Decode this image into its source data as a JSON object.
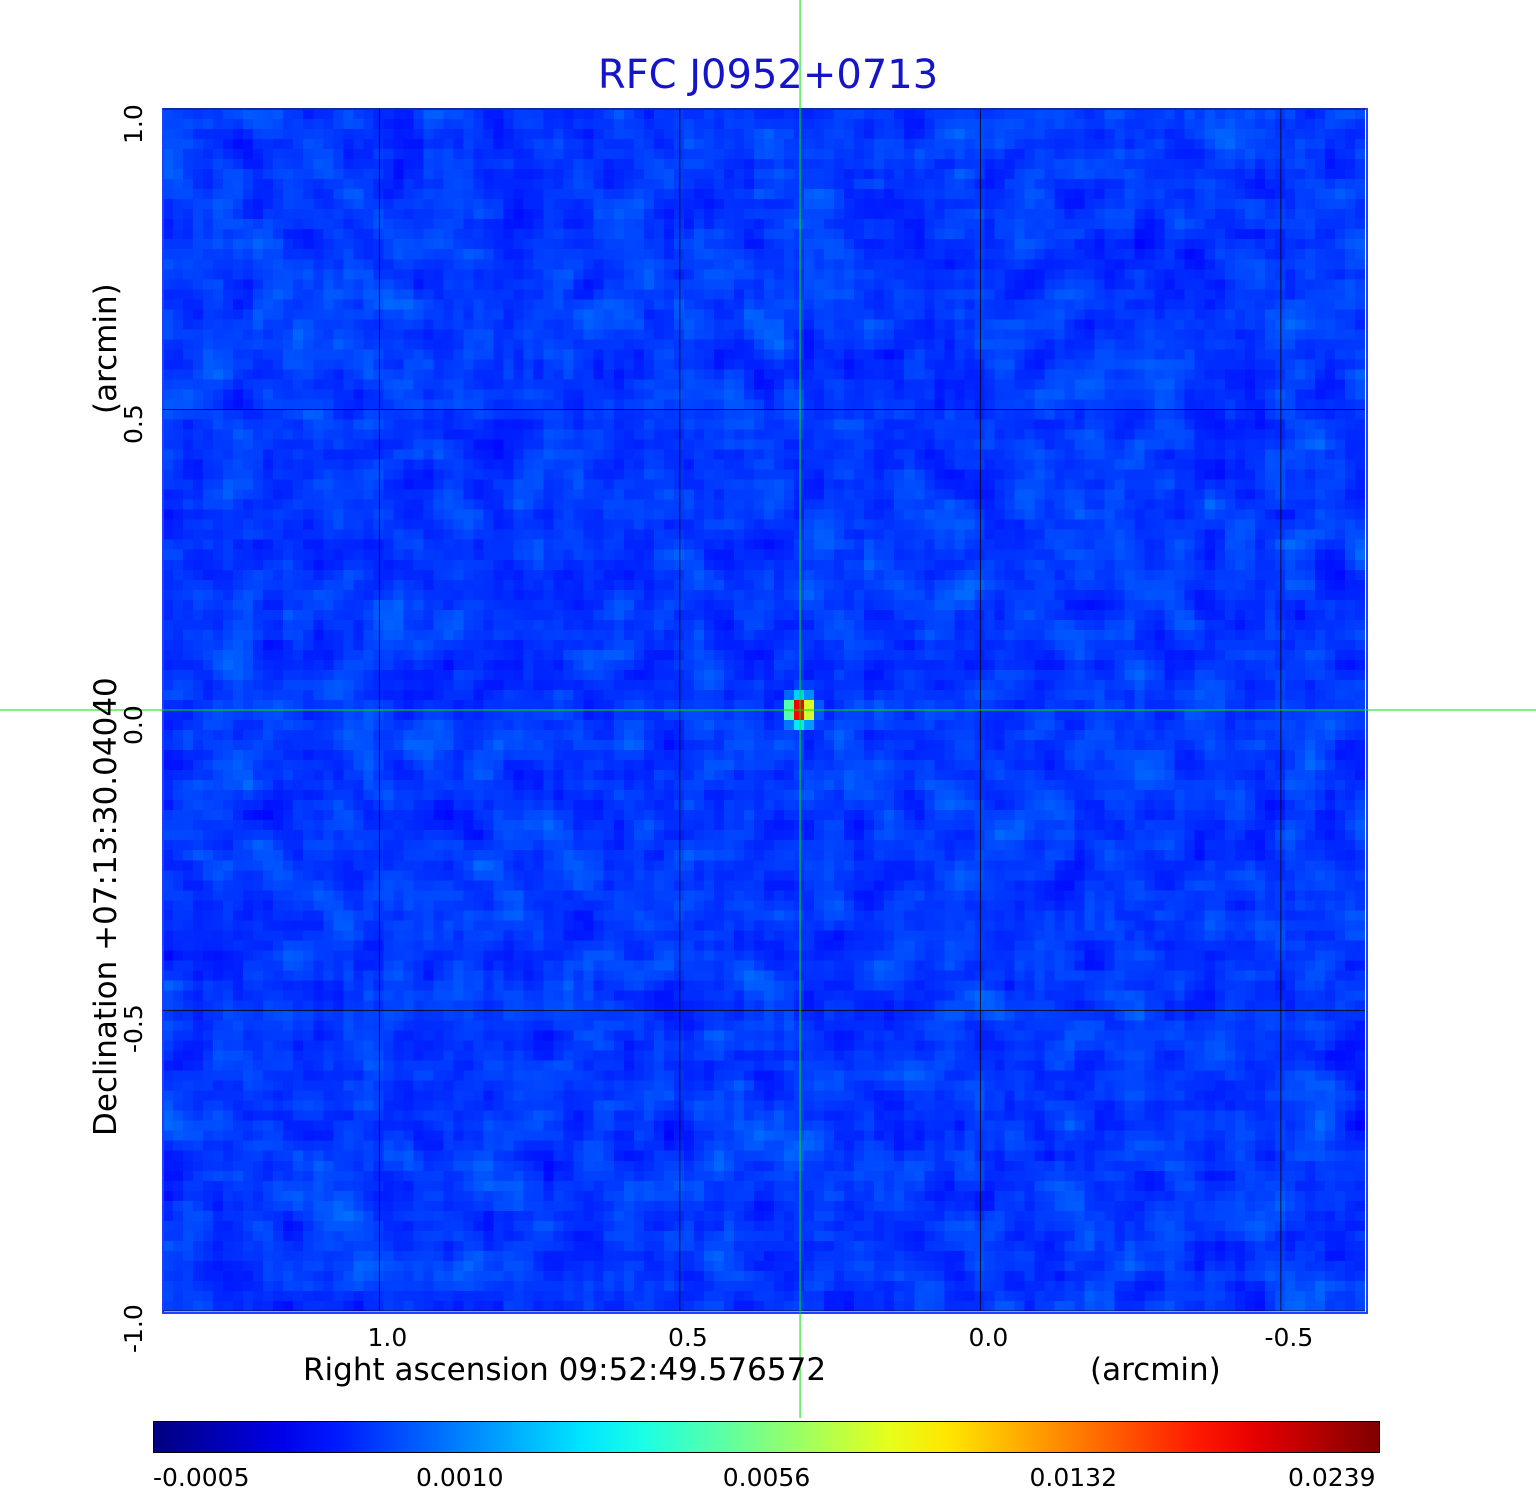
{
  "chart_data": {
    "type": "heatmap",
    "title": "RFC J0952+0713",
    "xlabel": "Right ascension  09:52:49.576572",
    "xunit": "(arcmin)",
    "ylabel": "Declination  +07:13:30.04040",
    "yunit": "(arcmin)",
    "xlim": [
      1.36,
      -0.64
    ],
    "ylim": [
      -1.0,
      1.0
    ],
    "x_ticks": [
      "1.0",
      "0.5",
      "0.0",
      "-0.5"
    ],
    "x_tick_values": [
      1.0,
      0.5,
      0.0,
      -0.5
    ],
    "y_ticks": [
      "-1.0",
      "-0.5",
      "0.0",
      "0.5",
      "1.0"
    ],
    "y_tick_values": [
      -1.0,
      -0.5,
      0.0,
      0.5,
      1.0
    ],
    "grid": true,
    "source": {
      "x": 0.3,
      "y": 0.0,
      "peak": 0.0239
    },
    "crosshair": {
      "x": 0.3,
      "y": 0.0,
      "color": "#00e000"
    },
    "colorbar": {
      "ticks": [
        "-0.0005",
        "0.0010",
        "0.0056",
        "0.0132",
        "0.0239"
      ],
      "colormap": "jet",
      "range": [
        -0.0005,
        0.0239
      ]
    }
  }
}
